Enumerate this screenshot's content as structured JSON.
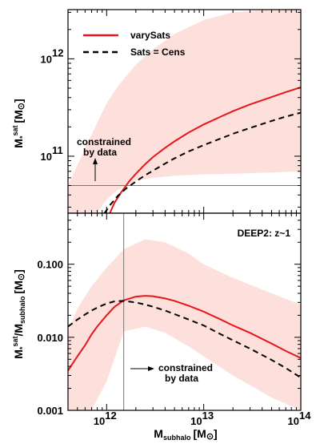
{
  "chart_data": [
    {
      "type": "line",
      "x_scale": "log",
      "y_scale": "log",
      "xlim": [
        400000000000.0,
        100000000000000.0
      ],
      "ylim": [
        26000000000.0,
        3200000000000.0
      ],
      "ylabel_main": "M",
      "ylabel_sub": "*",
      "ylabel_sup": "sat",
      "ylabel_unit": "[M",
      "ylabel_unit_end": "]",
      "yticks": [
        {
          "value": 100000000000.0,
          "base": "10",
          "exp": "11"
        },
        {
          "value": 1000000000000.0,
          "base": "10",
          "exp": "12"
        }
      ],
      "legend": [
        {
          "label": "varySats",
          "color": "#e8161b",
          "dash": "solid"
        },
        {
          "label": "Sats = Cens",
          "color": "#000000",
          "dash": "dashed"
        }
      ],
      "hline": 50000000000.0,
      "annotation": {
        "line1": "constrained",
        "line2": "by data"
      },
      "band": {
        "color": "#fde0dc",
        "x": [
          400000000000.0,
          600000000000.0,
          800000000000.0,
          1000000000000.0,
          1300000000000.0,
          2000000000000.0,
          3000000000000.0,
          5000000000000.0,
          10000000000000.0,
          20000000000000.0,
          50000000000000.0,
          100000000000000.0
        ],
        "lower": [
          26000000000.0,
          26000000000.0,
          26000000000.0,
          36000000000.0,
          45000000000.0,
          56000000000.0,
          60000000000.0,
          63000000000.0,
          65000000000.0,
          66000000000.0,
          68000000000.0,
          70000000000.0
        ],
        "upper": [
          50000000000.0,
          120000000000.0,
          220000000000.0,
          350000000000.0,
          520000000000.0,
          870000000000.0,
          1250000000000.0,
          1800000000000.0,
          2500000000000.0,
          3000000000000.0,
          3200000000000.0,
          3200000000000.0
        ]
      },
      "series": [
        {
          "name": "varySats",
          "color": "#e8161b",
          "dash": "solid",
          "x": [
            1080000000000.0,
            1200000000000.0,
            1400000000000.0,
            1700000000000.0,
            2000000000000.0,
            2500000000000.0,
            3000000000000.0,
            4000000000000.0,
            5000000000000.0,
            7000000000000.0,
            10000000000000.0,
            15000000000000.0,
            20000000000000.0,
            30000000000000.0,
            50000000000000.0,
            70000000000000.0,
            100000000000000.0
          ],
          "y": [
            26000000000.0,
            33000000000.0,
            42000000000.0,
            55000000000.0,
            66000000000.0,
            83000000000.0,
            98000000000.0,
            122000000000.0,
            142000000000.0,
            175000000000.0,
            212000000000.0,
            255000000000.0,
            290000000000.0,
            340000000000.0,
            405000000000.0,
            455000000000.0,
            510000000000.0
          ]
        },
        {
          "name": "Sats = Cens",
          "color": "#000000",
          "dash": "dashed",
          "x": [
            950000000000.0,
            1100000000000.0,
            1300000000000.0,
            1600000000000.0,
            2000000000000.0,
            2500000000000.0,
            3000000000000.0,
            4000000000000.0,
            5000000000000.0,
            7000000000000.0,
            10000000000000.0,
            15000000000000.0,
            20000000000000.0,
            30000000000000.0,
            50000000000000.0,
            70000000000000.0,
            100000000000000.0
          ],
          "y": [
            26000000000.0,
            32000000000.0,
            39000000000.0,
            47000000000.0,
            55000000000.0,
            64000000000.0,
            71000000000.0,
            84000000000.0,
            95000000000.0,
            112000000000.0,
            130000000000.0,
            152000000000.0,
            170000000000.0,
            195000000000.0,
            230000000000.0,
            255000000000.0,
            280000000000.0
          ]
        }
      ]
    },
    {
      "type": "line",
      "x_scale": "log",
      "y_scale": "log",
      "xlim": [
        400000000000.0,
        100000000000000.0
      ],
      "ylim": [
        0.001,
        0.5
      ],
      "xlabel_main": "M",
      "xlabel_sub": "subhalo",
      "xlabel_unit": "[M",
      "xlabel_unit_end": "]",
      "ylabel_main": "M",
      "ylabel_sub": "*",
      "ylabel_sup": "sat",
      "ylabel_div": "/M",
      "ylabel_sub2": "subhalo",
      "ylabel_unit": "[M",
      "ylabel_unit_end": "]",
      "xticks": [
        {
          "value": 1000000000000.0,
          "base": "10",
          "exp": "12"
        },
        {
          "value": 10000000000000.0,
          "base": "10",
          "exp": "13"
        },
        {
          "value": 100000000000000.0,
          "base": "10",
          "exp": "14"
        }
      ],
      "yticks": [
        {
          "value": 0.001,
          "label": "0.001"
        },
        {
          "value": 0.01,
          "label": "0.010"
        },
        {
          "value": 0.1,
          "label": "0.100"
        }
      ],
      "panel_label": "DEEP2: z~1",
      "vline": 1500000000000.0,
      "annotation": {
        "line1": "constrained",
        "line2": "by data"
      },
      "band": {
        "color": "#fde0dc",
        "x": [
          400000000000.0,
          500000000000.0,
          700000000000.0,
          1000000000000.0,
          1500000000000.0,
          2500000000000.0,
          4000000000000.0,
          7000000000000.0,
          10000000000000.0,
          20000000000000.0,
          50000000000000.0,
          100000000000000.0
        ],
        "lower": [
          0.001,
          0.001,
          0.001,
          0.0025,
          0.012,
          0.014,
          0.0115,
          0.0075,
          0.0055,
          0.003,
          0.0015,
          0.001
        ],
        "upper": [
          0.012,
          0.025,
          0.05,
          0.09,
          0.16,
          0.22,
          0.2,
          0.14,
          0.1,
          0.065,
          0.04,
          0.028
        ]
      },
      "series": [
        {
          "name": "varySats",
          "color": "#e8161b",
          "dash": "solid",
          "x": [
            400000000000.0,
            500000000000.0,
            600000000000.0,
            700000000000.0,
            800000000000.0,
            1000000000000.0,
            1200000000000.0,
            1500000000000.0,
            2000000000000.0,
            2500000000000.0,
            3000000000000.0,
            4000000000000.0,
            5000000000000.0,
            7000000000000.0,
            10000000000000.0,
            15000000000000.0,
            20000000000000.0,
            30000000000000.0,
            50000000000000.0,
            70000000000000.0,
            100000000000000.0
          ],
          "y": [
            0.0035,
            0.0055,
            0.0078,
            0.011,
            0.014,
            0.02,
            0.026,
            0.032,
            0.036,
            0.037,
            0.0365,
            0.034,
            0.0315,
            0.027,
            0.0225,
            0.0175,
            0.0145,
            0.0115,
            0.0082,
            0.0065,
            0.0052
          ]
        },
        {
          "name": "Sats = Cens",
          "color": "#000000",
          "dash": "dashed",
          "x": [
            400000000000.0,
            500000000000.0,
            600000000000.0,
            700000000000.0,
            800000000000.0,
            1000000000000.0,
            1200000000000.0,
            1500000000000.0,
            2000000000000.0,
            2500000000000.0,
            3000000000000.0,
            4000000000000.0,
            5000000000000.0,
            7000000000000.0,
            10000000000000.0,
            15000000000000.0,
            20000000000000.0,
            30000000000000.0,
            50000000000000.0,
            70000000000000.0,
            100000000000000.0
          ],
          "y": [
            0.014,
            0.0175,
            0.0205,
            0.0232,
            0.0255,
            0.029,
            0.031,
            0.0315,
            0.03,
            0.028,
            0.0262,
            0.0232,
            0.0208,
            0.0175,
            0.0145,
            0.011,
            0.0091,
            0.007,
            0.0049,
            0.0038,
            0.0028
          ]
        }
      ]
    }
  ]
}
